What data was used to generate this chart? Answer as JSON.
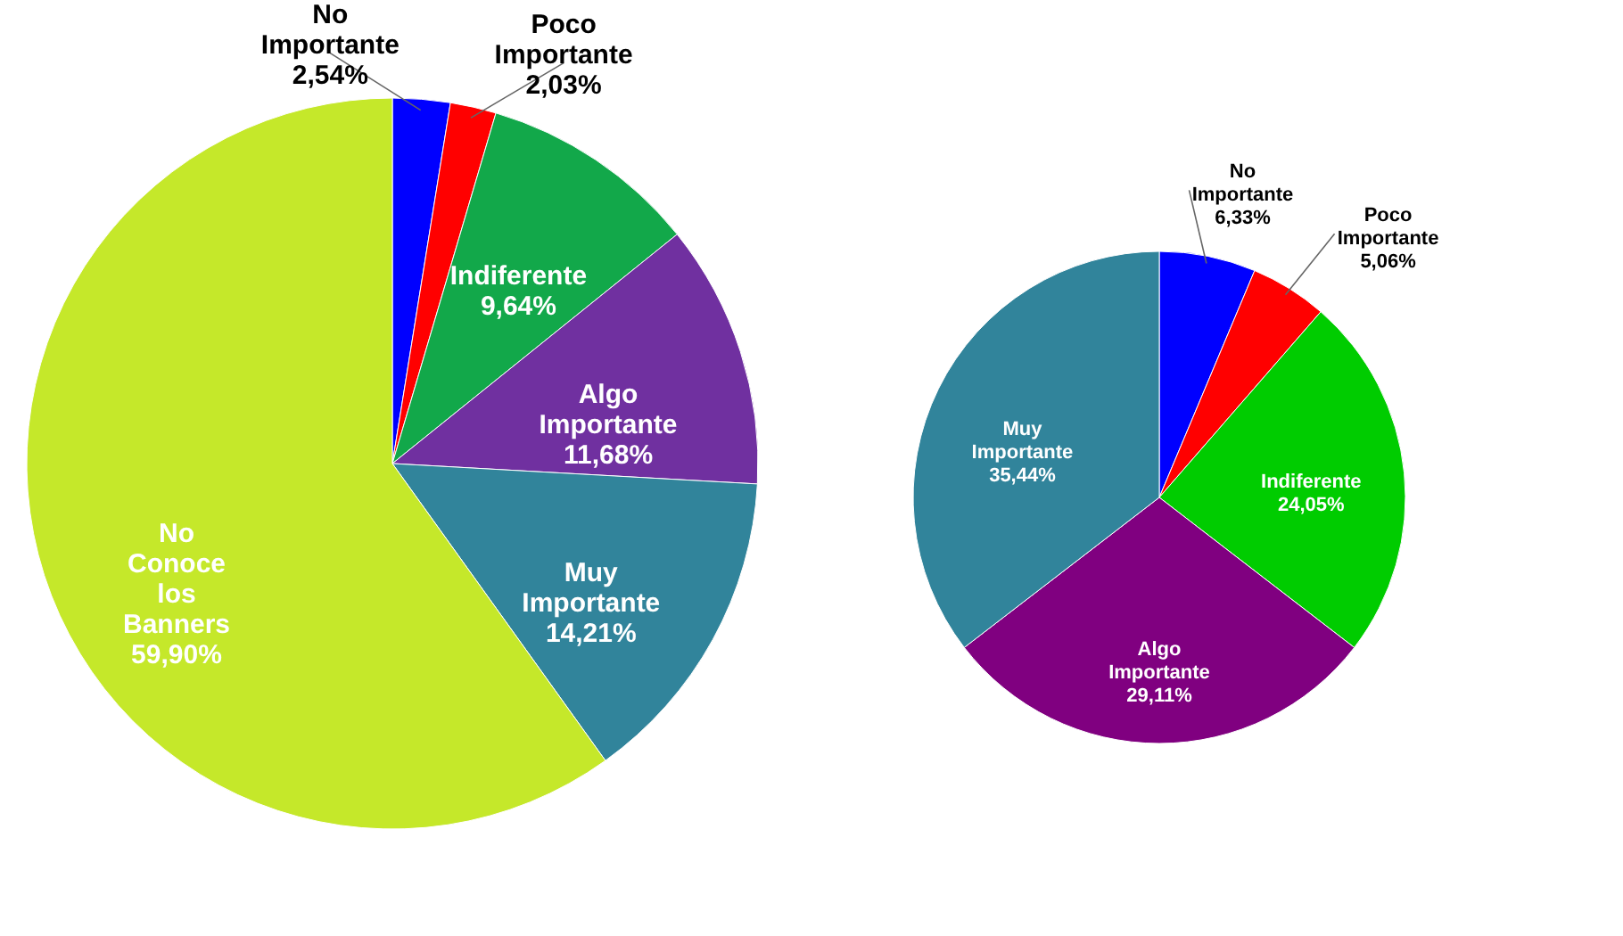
{
  "chart_data": [
    {
      "type": "pie",
      "categories": [
        "No Importante",
        "Poco Importante",
        "Indiferente",
        "Algo Importante",
        "Muy Importante",
        "No Conoce los Banners"
      ],
      "values": [
        2.54,
        2.03,
        9.64,
        11.68,
        14.21,
        59.9
      ],
      "value_labels": [
        "2,54%",
        "2,03%",
        "9,64%",
        "11,68%",
        "14,21%",
        "59,90%"
      ],
      "colors": [
        "#0000ff",
        "#ff0000",
        "#12a84a",
        "#7030a0",
        "#31849b",
        "#c5e82a"
      ]
    },
    {
      "type": "pie",
      "categories": [
        "No Importante",
        "Poco Importante",
        "Indiferente",
        "Algo Importante",
        "Muy Importante"
      ],
      "values": [
        6.33,
        5.06,
        24.05,
        29.11,
        35.44
      ],
      "value_labels": [
        "6,33%",
        "5,06%",
        "24,05%",
        "29,11%",
        "35,44%"
      ],
      "colors": [
        "#0000ff",
        "#ff0000",
        "#00cc00",
        "#800080",
        "#31849b"
      ]
    }
  ]
}
